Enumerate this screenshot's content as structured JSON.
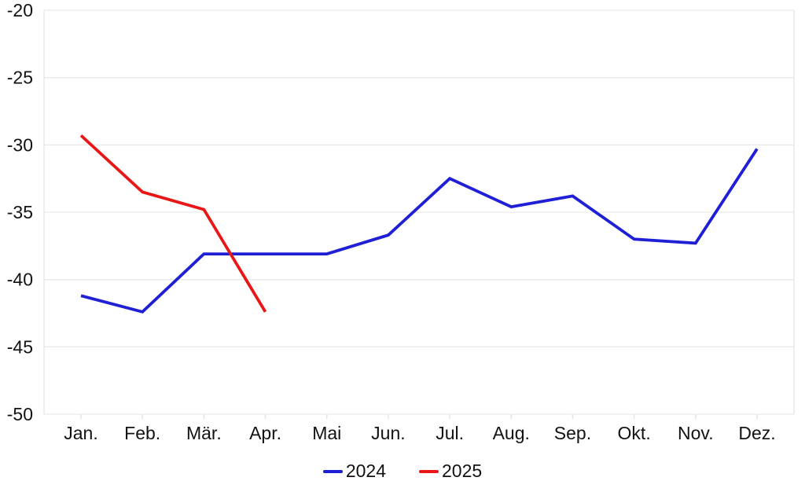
{
  "chart_data": {
    "type": "line",
    "title": "",
    "xlabel": "",
    "ylabel": "",
    "categories": [
      "Jan.",
      "Feb.",
      "Mär.",
      "Apr.",
      "Mai",
      "Jun.",
      "Jul.",
      "Aug.",
      "Sep.",
      "Okt.",
      "Nov.",
      "Dez."
    ],
    "series": [
      {
        "name": "2024",
        "color": "#1f1fd6",
        "values": [
          -41.2,
          -42.4,
          -38.1,
          -38.1,
          -38.1,
          -36.7,
          -32.5,
          -34.6,
          -33.8,
          -37.0,
          -37.3,
          -30.3
        ]
      },
      {
        "name": "2025",
        "color": "#ea1616",
        "values": [
          -29.3,
          -33.5,
          -34.8,
          -42.4,
          null,
          null,
          null,
          null,
          null,
          null,
          null,
          null
        ]
      }
    ],
    "ylim": [
      -50,
      -20
    ],
    "yticks": [
      -20,
      -25,
      -30,
      -35,
      -40,
      -45,
      -50
    ],
    "grid": true,
    "legend_position": "bottom"
  },
  "style": {
    "background": "#ffffff",
    "grid_color": "#e9e9e9",
    "frame_color": "#e4e4e4",
    "label_color": "#121212"
  }
}
